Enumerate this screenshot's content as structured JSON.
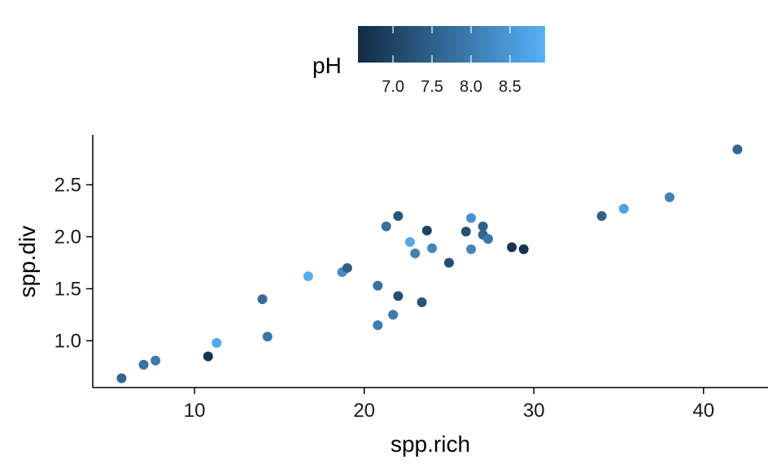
{
  "chart_data": {
    "type": "scatter",
    "xlabel": "spp.rich",
    "ylabel": "spp.div",
    "xlim": [
      4,
      43.8
    ],
    "ylim": [
      0.55,
      2.98
    ],
    "x_ticks": [
      10,
      20,
      30,
      40
    ],
    "x_tick_labels": [
      "10",
      "20",
      "30",
      "40"
    ],
    "y_ticks": [
      1.0,
      1.5,
      2.0,
      2.5
    ],
    "y_tick_labels": [
      "1.0",
      "1.5",
      "2.0",
      "2.5"
    ],
    "grid": false,
    "legend": {
      "title": "pH",
      "position": "top",
      "type": "colorbar",
      "range": [
        6.55,
        8.95
      ],
      "ticks": [
        7.0,
        7.5,
        8.0,
        8.5
      ],
      "tick_labels": [
        "7.0",
        "7.5",
        "8.0",
        "8.5"
      ],
      "color_low": "#132B43",
      "color_high": "#56B1F7"
    },
    "points": [
      {
        "x": 5.7,
        "y": 0.64,
        "pH": 7.6
      },
      {
        "x": 7.0,
        "y": 0.77,
        "pH": 7.8
      },
      {
        "x": 7.7,
        "y": 0.81,
        "pH": 8.0
      },
      {
        "x": 10.8,
        "y": 0.85,
        "pH": 6.7
      },
      {
        "x": 11.3,
        "y": 0.98,
        "pH": 8.8
      },
      {
        "x": 14.0,
        "y": 1.4,
        "pH": 7.7
      },
      {
        "x": 14.3,
        "y": 1.04,
        "pH": 7.9
      },
      {
        "x": 16.7,
        "y": 1.62,
        "pH": 8.9
      },
      {
        "x": 18.7,
        "y": 1.66,
        "pH": 8.3
      },
      {
        "x": 19.0,
        "y": 1.7,
        "pH": 7.5
      },
      {
        "x": 20.8,
        "y": 1.53,
        "pH": 7.8
      },
      {
        "x": 20.8,
        "y": 1.15,
        "pH": 8.0
      },
      {
        "x": 21.3,
        "y": 2.1,
        "pH": 7.8
      },
      {
        "x": 21.7,
        "y": 1.25,
        "pH": 8.0
      },
      {
        "x": 22.0,
        "y": 2.2,
        "pH": 7.3
      },
      {
        "x": 22.0,
        "y": 1.43,
        "pH": 7.2
      },
      {
        "x": 22.7,
        "y": 1.95,
        "pH": 8.8
      },
      {
        "x": 23.0,
        "y": 1.84,
        "pH": 8.1
      },
      {
        "x": 23.4,
        "y": 1.37,
        "pH": 7.3
      },
      {
        "x": 23.7,
        "y": 2.06,
        "pH": 7.0
      },
      {
        "x": 24.0,
        "y": 1.89,
        "pH": 8.2
      },
      {
        "x": 25.0,
        "y": 1.75,
        "pH": 7.2
      },
      {
        "x": 26.0,
        "y": 2.05,
        "pH": 7.2
      },
      {
        "x": 26.3,
        "y": 2.18,
        "pH": 8.4
      },
      {
        "x": 26.3,
        "y": 1.88,
        "pH": 8.2
      },
      {
        "x": 27.0,
        "y": 2.1,
        "pH": 7.5
      },
      {
        "x": 27.0,
        "y": 2.02,
        "pH": 7.6
      },
      {
        "x": 27.3,
        "y": 1.98,
        "pH": 7.9
      },
      {
        "x": 28.7,
        "y": 1.9,
        "pH": 6.7
      },
      {
        "x": 29.4,
        "y": 1.88,
        "pH": 6.7
      },
      {
        "x": 34.0,
        "y": 2.2,
        "pH": 7.5
      },
      {
        "x": 35.3,
        "y": 2.27,
        "pH": 8.7
      },
      {
        "x": 38.0,
        "y": 2.38,
        "pH": 8.1
      },
      {
        "x": 42.0,
        "y": 2.84,
        "pH": 7.6
      }
    ]
  }
}
